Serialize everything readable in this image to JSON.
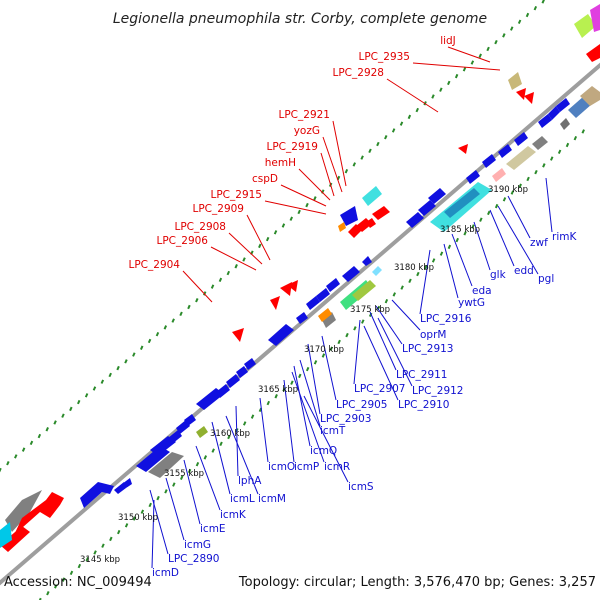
{
  "title": "Legionella pneumophila str. Corby, complete genome",
  "footer": {
    "accession": "Accession: NC_009494",
    "topology": "Topology: circular; Length: 3,576,470 bp; Genes: 3,257"
  },
  "colors": {
    "backbone": "#a0a0a0",
    "plus_label": "#e00000",
    "minus_label": "#1010d0",
    "tick": "#2a8a2a"
  },
  "kbp_marks": [
    "3145 kbp",
    "3150 kbp",
    "3155 kbp",
    "3160 kbp",
    "3165 kbp",
    "3170 kbp",
    "3175 kbp",
    "3180 kbp",
    "3185 kbp",
    "3190 kbp"
  ],
  "plus_labels": [
    "lidJ",
    "LPC_2935",
    "LPC_2928",
    "LPC_2921",
    "yozG",
    "LPC_2919",
    "hemH",
    "cspD",
    "LPC_2915",
    "LPC_2909",
    "LPC_2908",
    "LPC_2906",
    "LPC_2904"
  ],
  "minus_labels": [
    "rimK",
    "zwf",
    "pgl",
    "edd",
    "glk",
    "eda",
    "ywtG",
    "LPC_2916",
    "oprM",
    "LPC_2913",
    "LPC_2911",
    "LPC_2912",
    "LPC_2907",
    "LPC_2910",
    "LPC_2905",
    "LPC_2903",
    "icmT",
    "icmQ",
    "icmR",
    "icmP",
    "icmS",
    "icmO",
    "lphA",
    "icmM",
    "icmL",
    "icmK",
    "icmE",
    "icmG",
    "LPC_2890",
    "icmD"
  ]
}
